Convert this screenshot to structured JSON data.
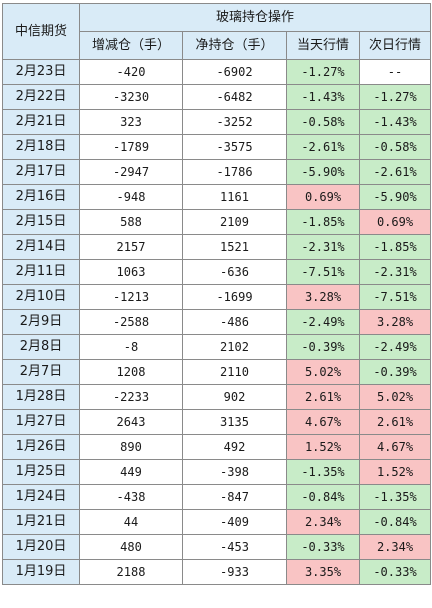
{
  "table": {
    "corner_header": "中信期货",
    "group_header": "玻璃持仓操作",
    "columns": [
      "增减仓（手）",
      "净持仓（手）",
      "当天行情",
      "次日行情"
    ],
    "colors": {
      "header_bg": "#d9ebf7",
      "down_green": "#c8ecc8",
      "up_red": "#f9c4c4"
    },
    "rows": [
      {
        "date": "2月23日",
        "change": "-420",
        "net": "-6902",
        "today": "-1.27%",
        "next": "--"
      },
      {
        "date": "2月22日",
        "change": "-3230",
        "net": "-6482",
        "today": "-1.43%",
        "next": "-1.27%"
      },
      {
        "date": "2月21日",
        "change": "323",
        "net": "-3252",
        "today": "-0.58%",
        "next": "-1.43%"
      },
      {
        "date": "2月18日",
        "change": "-1789",
        "net": "-3575",
        "today": "-2.61%",
        "next": "-0.58%"
      },
      {
        "date": "2月17日",
        "change": "-2947",
        "net": "-1786",
        "today": "-5.90%",
        "next": "-2.61%"
      },
      {
        "date": "2月16日",
        "change": "-948",
        "net": "1161",
        "today": "0.69%",
        "next": "-5.90%"
      },
      {
        "date": "2月15日",
        "change": "588",
        "net": "2109",
        "today": "-1.85%",
        "next": "0.69%"
      },
      {
        "date": "2月14日",
        "change": "2157",
        "net": "1521",
        "today": "-2.31%",
        "next": "-1.85%"
      },
      {
        "date": "2月11日",
        "change": "1063",
        "net": "-636",
        "today": "-7.51%",
        "next": "-2.31%"
      },
      {
        "date": "2月10日",
        "change": "-1213",
        "net": "-1699",
        "today": "3.28%",
        "next": "-7.51%"
      },
      {
        "date": "2月9日",
        "change": "-2588",
        "net": "-486",
        "today": "-2.49%",
        "next": "3.28%"
      },
      {
        "date": "2月8日",
        "change": "-8",
        "net": "2102",
        "today": "-0.39%",
        "next": "-2.49%"
      },
      {
        "date": "2月7日",
        "change": "1208",
        "net": "2110",
        "today": "5.02%",
        "next": "-0.39%"
      },
      {
        "date": "1月28日",
        "change": "-2233",
        "net": "902",
        "today": "2.61%",
        "next": "5.02%"
      },
      {
        "date": "1月27日",
        "change": "2643",
        "net": "3135",
        "today": "4.67%",
        "next": "2.61%"
      },
      {
        "date": "1月26日",
        "change": "890",
        "net": "492",
        "today": "1.52%",
        "next": "4.67%"
      },
      {
        "date": "1月25日",
        "change": "449",
        "net": "-398",
        "today": "-1.35%",
        "next": "1.52%"
      },
      {
        "date": "1月24日",
        "change": "-438",
        "net": "-847",
        "today": "-0.84%",
        "next": "-1.35%"
      },
      {
        "date": "1月21日",
        "change": "44",
        "net": "-409",
        "today": "2.34%",
        "next": "-0.84%"
      },
      {
        "date": "1月20日",
        "change": "480",
        "net": "-453",
        "today": "-0.33%",
        "next": "2.34%"
      },
      {
        "date": "1月19日",
        "change": "2188",
        "net": "-933",
        "today": "3.35%",
        "next": "-0.33%"
      }
    ]
  }
}
